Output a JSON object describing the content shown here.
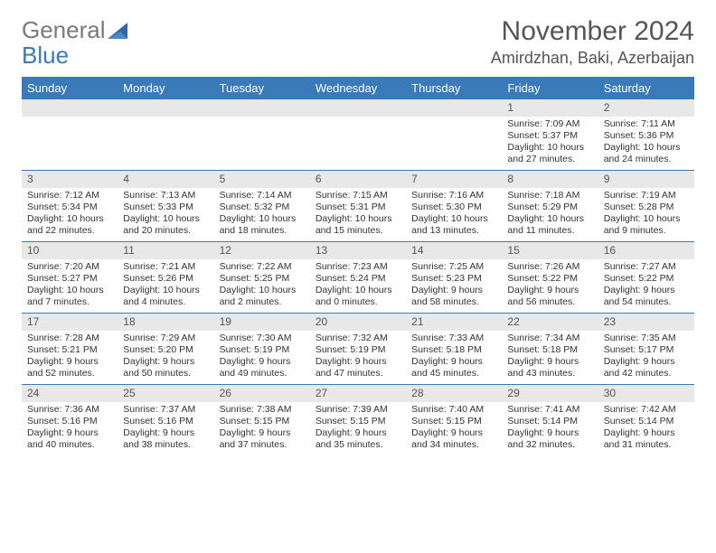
{
  "logo": {
    "text1": "General",
    "text2": "Blue"
  },
  "title": "November 2024",
  "location": "Amirdzhan, Baki, Azerbaijan",
  "colors": {
    "header_bg": "#3a7ab8",
    "daynum_bg": "#e8e8e8",
    "border": "#3a7ab8",
    "text": "#333333"
  },
  "dayNames": [
    "Sunday",
    "Monday",
    "Tuesday",
    "Wednesday",
    "Thursday",
    "Friday",
    "Saturday"
  ],
  "weeks": [
    [
      null,
      null,
      null,
      null,
      null,
      {
        "n": "1",
        "sr": "Sunrise: 7:09 AM",
        "ss": "Sunset: 5:37 PM",
        "dl1": "Daylight: 10 hours",
        "dl2": "and 27 minutes."
      },
      {
        "n": "2",
        "sr": "Sunrise: 7:11 AM",
        "ss": "Sunset: 5:36 PM",
        "dl1": "Daylight: 10 hours",
        "dl2": "and 24 minutes."
      }
    ],
    [
      {
        "n": "3",
        "sr": "Sunrise: 7:12 AM",
        "ss": "Sunset: 5:34 PM",
        "dl1": "Daylight: 10 hours",
        "dl2": "and 22 minutes."
      },
      {
        "n": "4",
        "sr": "Sunrise: 7:13 AM",
        "ss": "Sunset: 5:33 PM",
        "dl1": "Daylight: 10 hours",
        "dl2": "and 20 minutes."
      },
      {
        "n": "5",
        "sr": "Sunrise: 7:14 AM",
        "ss": "Sunset: 5:32 PM",
        "dl1": "Daylight: 10 hours",
        "dl2": "and 18 minutes."
      },
      {
        "n": "6",
        "sr": "Sunrise: 7:15 AM",
        "ss": "Sunset: 5:31 PM",
        "dl1": "Daylight: 10 hours",
        "dl2": "and 15 minutes."
      },
      {
        "n": "7",
        "sr": "Sunrise: 7:16 AM",
        "ss": "Sunset: 5:30 PM",
        "dl1": "Daylight: 10 hours",
        "dl2": "and 13 minutes."
      },
      {
        "n": "8",
        "sr": "Sunrise: 7:18 AM",
        "ss": "Sunset: 5:29 PM",
        "dl1": "Daylight: 10 hours",
        "dl2": "and 11 minutes."
      },
      {
        "n": "9",
        "sr": "Sunrise: 7:19 AM",
        "ss": "Sunset: 5:28 PM",
        "dl1": "Daylight: 10 hours",
        "dl2": "and 9 minutes."
      }
    ],
    [
      {
        "n": "10",
        "sr": "Sunrise: 7:20 AM",
        "ss": "Sunset: 5:27 PM",
        "dl1": "Daylight: 10 hours",
        "dl2": "and 7 minutes."
      },
      {
        "n": "11",
        "sr": "Sunrise: 7:21 AM",
        "ss": "Sunset: 5:26 PM",
        "dl1": "Daylight: 10 hours",
        "dl2": "and 4 minutes."
      },
      {
        "n": "12",
        "sr": "Sunrise: 7:22 AM",
        "ss": "Sunset: 5:25 PM",
        "dl1": "Daylight: 10 hours",
        "dl2": "and 2 minutes."
      },
      {
        "n": "13",
        "sr": "Sunrise: 7:23 AM",
        "ss": "Sunset: 5:24 PM",
        "dl1": "Daylight: 10 hours",
        "dl2": "and 0 minutes."
      },
      {
        "n": "14",
        "sr": "Sunrise: 7:25 AM",
        "ss": "Sunset: 5:23 PM",
        "dl1": "Daylight: 9 hours",
        "dl2": "and 58 minutes."
      },
      {
        "n": "15",
        "sr": "Sunrise: 7:26 AM",
        "ss": "Sunset: 5:22 PM",
        "dl1": "Daylight: 9 hours",
        "dl2": "and 56 minutes."
      },
      {
        "n": "16",
        "sr": "Sunrise: 7:27 AM",
        "ss": "Sunset: 5:22 PM",
        "dl1": "Daylight: 9 hours",
        "dl2": "and 54 minutes."
      }
    ],
    [
      {
        "n": "17",
        "sr": "Sunrise: 7:28 AM",
        "ss": "Sunset: 5:21 PM",
        "dl1": "Daylight: 9 hours",
        "dl2": "and 52 minutes."
      },
      {
        "n": "18",
        "sr": "Sunrise: 7:29 AM",
        "ss": "Sunset: 5:20 PM",
        "dl1": "Daylight: 9 hours",
        "dl2": "and 50 minutes."
      },
      {
        "n": "19",
        "sr": "Sunrise: 7:30 AM",
        "ss": "Sunset: 5:19 PM",
        "dl1": "Daylight: 9 hours",
        "dl2": "and 49 minutes."
      },
      {
        "n": "20",
        "sr": "Sunrise: 7:32 AM",
        "ss": "Sunset: 5:19 PM",
        "dl1": "Daylight: 9 hours",
        "dl2": "and 47 minutes."
      },
      {
        "n": "21",
        "sr": "Sunrise: 7:33 AM",
        "ss": "Sunset: 5:18 PM",
        "dl1": "Daylight: 9 hours",
        "dl2": "and 45 minutes."
      },
      {
        "n": "22",
        "sr": "Sunrise: 7:34 AM",
        "ss": "Sunset: 5:18 PM",
        "dl1": "Daylight: 9 hours",
        "dl2": "and 43 minutes."
      },
      {
        "n": "23",
        "sr": "Sunrise: 7:35 AM",
        "ss": "Sunset: 5:17 PM",
        "dl1": "Daylight: 9 hours",
        "dl2": "and 42 minutes."
      }
    ],
    [
      {
        "n": "24",
        "sr": "Sunrise: 7:36 AM",
        "ss": "Sunset: 5:16 PM",
        "dl1": "Daylight: 9 hours",
        "dl2": "and 40 minutes."
      },
      {
        "n": "25",
        "sr": "Sunrise: 7:37 AM",
        "ss": "Sunset: 5:16 PM",
        "dl1": "Daylight: 9 hours",
        "dl2": "and 38 minutes."
      },
      {
        "n": "26",
        "sr": "Sunrise: 7:38 AM",
        "ss": "Sunset: 5:15 PM",
        "dl1": "Daylight: 9 hours",
        "dl2": "and 37 minutes."
      },
      {
        "n": "27",
        "sr": "Sunrise: 7:39 AM",
        "ss": "Sunset: 5:15 PM",
        "dl1": "Daylight: 9 hours",
        "dl2": "and 35 minutes."
      },
      {
        "n": "28",
        "sr": "Sunrise: 7:40 AM",
        "ss": "Sunset: 5:15 PM",
        "dl1": "Daylight: 9 hours",
        "dl2": "and 34 minutes."
      },
      {
        "n": "29",
        "sr": "Sunrise: 7:41 AM",
        "ss": "Sunset: 5:14 PM",
        "dl1": "Daylight: 9 hours",
        "dl2": "and 32 minutes."
      },
      {
        "n": "30",
        "sr": "Sunrise: 7:42 AM",
        "ss": "Sunset: 5:14 PM",
        "dl1": "Daylight: 9 hours",
        "dl2": "and 31 minutes."
      }
    ]
  ]
}
